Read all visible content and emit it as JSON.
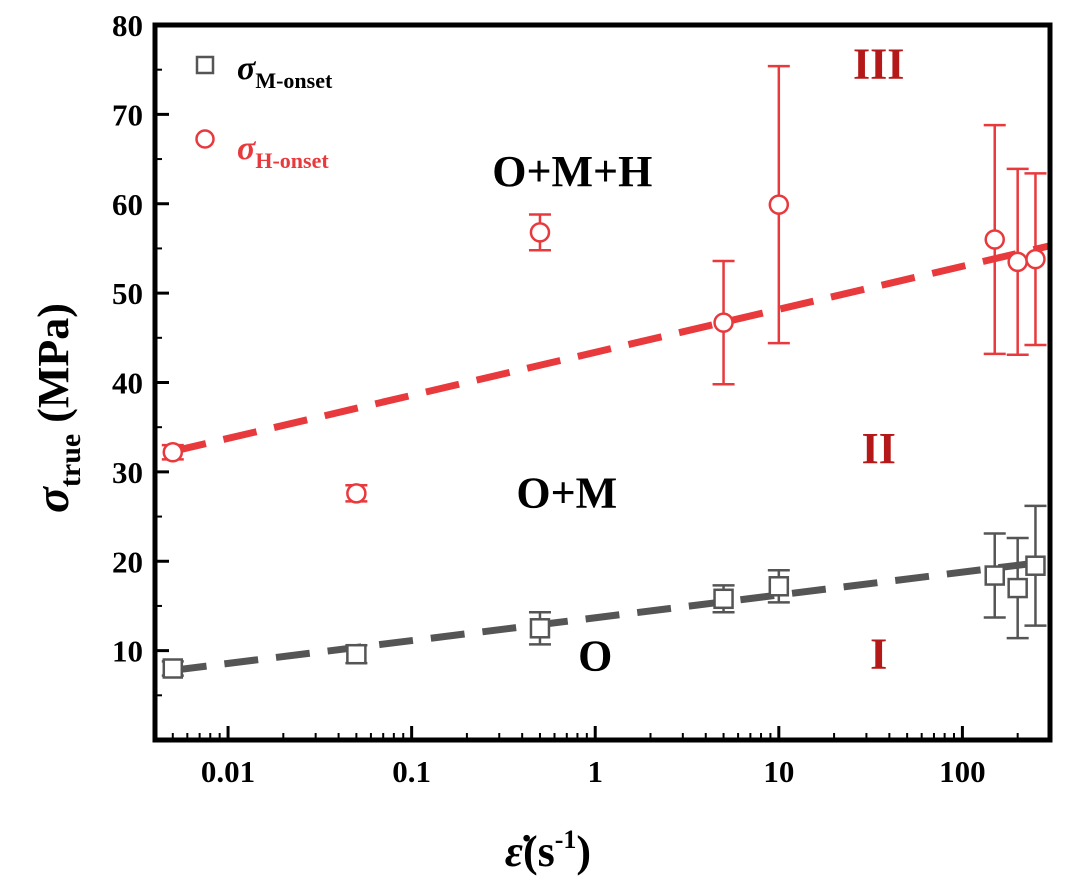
{
  "chart_data": {
    "type": "scatter",
    "x_scale": "log",
    "xlim": [
      0.004,
      300
    ],
    "ylim": [
      0,
      80
    ],
    "x_ticks": [
      {
        "value": 0.01,
        "label": "0.01"
      },
      {
        "value": 0.1,
        "label": "0.1"
      },
      {
        "value": 1,
        "label": "1"
      },
      {
        "value": 10,
        "label": "10"
      },
      {
        "value": 100,
        "label": "100"
      }
    ],
    "y_ticks": [
      {
        "value": 10,
        "label": "10"
      },
      {
        "value": 20,
        "label": "20"
      },
      {
        "value": 30,
        "label": "30"
      },
      {
        "value": 40,
        "label": "40"
      },
      {
        "value": 50,
        "label": "50"
      },
      {
        "value": 60,
        "label": "60"
      },
      {
        "value": 70,
        "label": "70"
      },
      {
        "value": 80,
        "label": "80"
      }
    ],
    "xlabel": {
      "main": "ε̇",
      "paren": "(s",
      "sup": "-1",
      "close": ")"
    },
    "ylabel": {
      "main": "σ",
      "sub": "true",
      "unit": " (MPa)"
    },
    "legend_position": "top-left",
    "grid": false,
    "series": [
      {
        "name": "σ",
        "name_sub": "M-onset",
        "marker": "square",
        "color": "#555555",
        "points": [
          {
            "x": 0.005,
            "y": 8.0,
            "err": 0.8
          },
          {
            "x": 0.05,
            "y": 9.6,
            "err": 1.0
          },
          {
            "x": 0.5,
            "y": 12.5,
            "err": 1.8
          },
          {
            "x": 5,
            "y": 15.8,
            "err": 1.5
          },
          {
            "x": 10,
            "y": 17.2,
            "err": 1.8
          },
          {
            "x": 150,
            "y": 18.4,
            "err": 4.7
          },
          {
            "x": 200,
            "y": 17.0,
            "err": 5.6
          },
          {
            "x": 250,
            "y": 19.5,
            "err": 6.7
          }
        ],
        "fit": {
          "type": "dashed",
          "color": "#555555",
          "x": [
            0.005,
            300
          ],
          "y": [
            7.8,
            20.0
          ]
        }
      },
      {
        "name": "σ",
        "name_sub": "H-onset",
        "marker": "circle",
        "color": "#e8393d",
        "points": [
          {
            "x": 0.005,
            "y": 32.2,
            "err": 0.8
          },
          {
            "x": 0.05,
            "y": 27.6,
            "err": 0.9
          },
          {
            "x": 0.5,
            "y": 56.8,
            "err": 2.0
          },
          {
            "x": 5,
            "y": 46.7,
            "err": 6.9
          },
          {
            "x": 10,
            "y": 59.9,
            "err": 15.5
          },
          {
            "x": 150,
            "y": 56.0,
            "err": 12.8
          },
          {
            "x": 200,
            "y": 53.5,
            "err": 10.4
          },
          {
            "x": 250,
            "y": 53.8,
            "err": 9.6
          }
        ],
        "fit": {
          "type": "dashed",
          "color": "#e8393d",
          "x": [
            0.005,
            300
          ],
          "y": [
            32.3,
            55.3
          ]
        }
      }
    ],
    "annotations": [
      {
        "text": "O+M+H",
        "x": 0.75,
        "y": 62,
        "color": "#000000"
      },
      {
        "text": "O+M",
        "x": 0.7,
        "y": 26,
        "color": "#000000"
      },
      {
        "text": "O",
        "x": 1.0,
        "y": 7.8,
        "color": "#000000"
      },
      {
        "text": "III",
        "x": 35,
        "y": 74,
        "color": "#b51818"
      },
      {
        "text": "II",
        "x": 35,
        "y": 31,
        "color": "#b51818"
      },
      {
        "text": "I",
        "x": 35,
        "y": 8,
        "color": "#b51818"
      }
    ]
  }
}
